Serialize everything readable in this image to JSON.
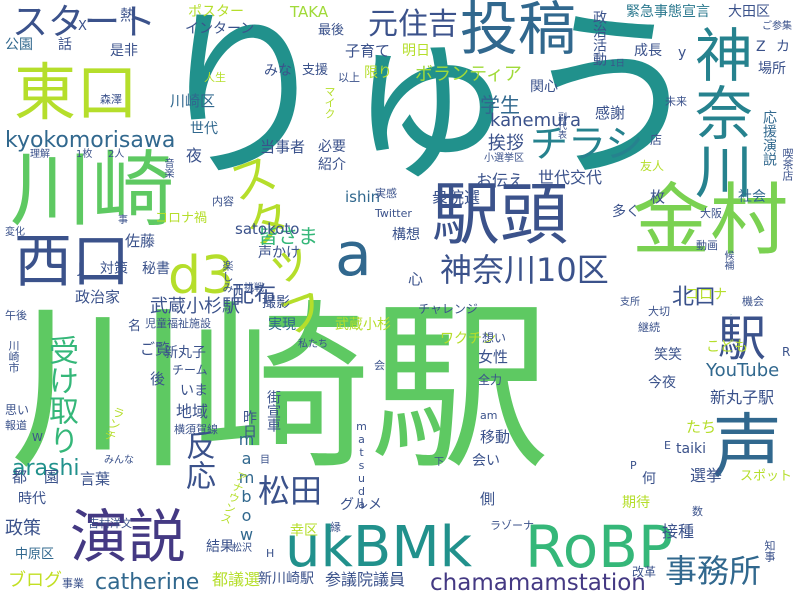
{
  "words": [
    {
      "text": "川崎駅",
      "color": "#5ec962"
    },
    {
      "text": "りゅう",
      "color": "#21918c"
    },
    {
      "text": "金村",
      "color": "#7ad151"
    },
    {
      "text": "駅頭",
      "color": "#3b528b"
    },
    {
      "text": "川崎",
      "color": "#5ec962"
    },
    {
      "text": "東口",
      "color": "#b5de2b"
    },
    {
      "text": "西口",
      "color": "#3b528b"
    },
    {
      "text": "演説",
      "color": "#443983"
    },
    {
      "text": "投稿",
      "color": "#31688e"
    },
    {
      "text": "ukBMk",
      "color": "#21918c"
    },
    {
      "text": "RoBP",
      "color": "#35b779"
    },
    {
      "text": "神奈川",
      "color": "#26828e"
    },
    {
      "text": "スタッフ",
      "color": "#b5de2b"
    },
    {
      "text": "d3",
      "color": "#b5de2b"
    },
    {
      "text": "a",
      "color": "#31688e"
    },
    {
      "text": "声",
      "color": "#31688e"
    },
    {
      "text": "駅",
      "color": "#3b528b"
    },
    {
      "text": "神奈川10区",
      "color": "#3b528b"
    },
    {
      "text": "チラシ",
      "color": "#26828e"
    },
    {
      "text": "事務所",
      "color": "#31688e"
    },
    {
      "text": "松田",
      "color": "#3b528b"
    },
    {
      "text": "chamamamstation",
      "color": "#443983"
    },
    {
      "text": "スタート",
      "color": "#3b528b"
    },
    {
      "text": "元住吉",
      "color": "#3b528b"
    },
    {
      "text": "kyokomorisawa",
      "color": "#31688e"
    },
    {
      "text": "ビラ",
      "color": "#26828e"
    },
    {
      "text": "受け取り",
      "color": "#35b779"
    },
    {
      "text": "反応",
      "color": "#3b528b"
    },
    {
      "text": "YouTube",
      "color": "#31688e"
    },
    {
      "text": "arashi",
      "color": "#21918c"
    },
    {
      "text": "catherine",
      "color": "#31688e"
    },
    {
      "text": "kanemura",
      "color": "#3b528b"
    },
    {
      "text": "ボランティア",
      "color": "#a0da39"
    },
    {
      "text": "学生",
      "color": "#31688e"
    },
    {
      "text": "北口",
      "color": "#3b528b"
    },
    {
      "text": "皆さま",
      "color": "#35b779"
    },
    {
      "text": "配布",
      "color": "#3b528b"
    },
    {
      "text": "武蔵小杉駅",
      "color": "#3b528b"
    },
    {
      "text": "ブログ",
      "color": "#c2df23"
    },
    {
      "text": "政策",
      "color": "#3b528b"
    },
    {
      "text": "挨拶",
      "color": "#3b528b"
    },
    {
      "text": "世代交代",
      "color": "#3b528b"
    },
    {
      "text": "衆院選",
      "color": "#3b528b"
    },
    {
      "text": "お伝え",
      "color": "#3b528b"
    },
    {
      "text": "緊急事態宣言",
      "color": "#2a788e"
    },
    {
      "text": "大田区",
      "color": "#3b528b"
    },
    {
      "text": "コロナ対策",
      "color": "#b5de2b"
    },
    {
      "text": "新丸子駅",
      "color": "#3b528b"
    },
    {
      "text": "地域",
      "color": "#3b528b"
    },
    {
      "text": "選挙",
      "color": "#3b528b"
    },
    {
      "text": "接種",
      "color": "#3b528b"
    },
    {
      "text": "参議院議員",
      "color": "#3b528b"
    },
    {
      "text": "都議選",
      "color": "#b5de2b"
    },
    {
      "text": "新川崎駅",
      "color": "#3b528b"
    },
    {
      "text": "mambow",
      "color": "#31688e"
    },
    {
      "text": "satokoto",
      "color": "#3b528b"
    },
    {
      "text": "ishin",
      "color": "#31688e"
    },
    {
      "text": "taiki",
      "color": "#3b528b"
    },
    {
      "text": "TAKA",
      "color": "#a0da39"
    },
    {
      "text": "ポスター",
      "color": "#b5de2b"
    },
    {
      "text": "インターン",
      "color": "#3b528b"
    },
    {
      "text": "成長",
      "color": "#3b528b"
    },
    {
      "text": "子育て",
      "color": "#3b528b"
    },
    {
      "text": "明日",
      "color": "#b5de2b"
    },
    {
      "text": "構想",
      "color": "#3b528b"
    },
    {
      "text": "多く",
      "color": "#3b528b"
    },
    {
      "text": "社会",
      "color": "#31688e"
    },
    {
      "text": "移動",
      "color": "#3b528b"
    },
    {
      "text": "ワクチン",
      "color": "#b5de2b"
    },
    {
      "text": "実現",
      "color": "#31688e"
    },
    {
      "text": "撮影",
      "color": "#3b528b"
    },
    {
      "text": "女性",
      "color": "#3b528b"
    },
    {
      "text": "笑笑",
      "color": "#3b528b"
    },
    {
      "text": "今夜",
      "color": "#3b528b"
    },
    {
      "text": "中原区",
      "color": "#31688e"
    },
    {
      "text": "政治家",
      "color": "#3b528b"
    },
    {
      "text": "時代",
      "color": "#3b528b"
    },
    {
      "text": "言葉",
      "color": "#3b528b"
    },
    {
      "text": "いま",
      "color": "#3b528b"
    },
    {
      "text": "佐藤",
      "color": "#3b528b"
    },
    {
      "text": "当事者",
      "color": "#3b528b"
    },
    {
      "text": "必要",
      "color": "#3b528b"
    },
    {
      "text": "紹介",
      "color": "#3b528b"
    },
    {
      "text": "支援",
      "color": "#3b528b"
    },
    {
      "text": "みな",
      "color": "#3b528b"
    },
    {
      "text": "夜",
      "color": "#3b528b"
    },
    {
      "text": "世代",
      "color": "#31688e"
    },
    {
      "text": "川崎区",
      "color": "#31688e"
    },
    {
      "text": "公園",
      "color": "#31688e"
    },
    {
      "text": "話",
      "color": "#3b528b"
    },
    {
      "text": "是非",
      "color": "#3b528b"
    },
    {
      "text": "熱",
      "color": "#3b528b"
    },
    {
      "text": "感謝",
      "color": "#3b528b"
    },
    {
      "text": "関心",
      "color": "#3b528b"
    },
    {
      "text": "場所",
      "color": "#3b528b"
    },
    {
      "text": "応援演説",
      "color": "#31688e"
    },
    {
      "text": "政治活動",
      "color": "#3b528b"
    },
    {
      "text": "限り",
      "color": "#b5de2b"
    },
    {
      "text": "最後",
      "color": "#3b528b"
    },
    {
      "text": "グルメ",
      "color": "#3b528b"
    },
    {
      "text": "結果",
      "color": "#3b528b"
    },
    {
      "text": "幸区",
      "color": "#b5de2b"
    },
    {
      "text": "側",
      "color": "#3b528b"
    },
    {
      "text": "期待",
      "color": "#b5de2b"
    },
    {
      "text": "会い",
      "color": "#3b528b"
    },
    {
      "text": "何",
      "color": "#3b528b"
    },
    {
      "text": "改革",
      "color": "#3b528b"
    },
    {
      "text": "コロナ",
      "color": "#b5de2b"
    },
    {
      "text": "声かけ",
      "color": "#3b528b"
    },
    {
      "text": "心",
      "color": "#3b528b"
    },
    {
      "text": "枚",
      "color": "#3b528b"
    },
    {
      "text": "ご覧",
      "color": "#3b528b"
    },
    {
      "text": "後",
      "color": "#3b528b"
    },
    {
      "text": "たち",
      "color": "#b5de2b"
    },
    {
      "text": "こども",
      "color": "#b5de2b"
    },
    {
      "text": "都",
      "color": "#3b528b"
    },
    {
      "text": "園",
      "color": "#3b528b"
    },
    {
      "text": "対策",
      "color": "#3b528b"
    },
    {
      "text": "秘書",
      "color": "#3b528b"
    },
    {
      "text": "昨日",
      "color": "#3b528b"
    },
    {
      "text": "武蔵小杉",
      "color": "#b5de2b"
    },
    {
      "text": "街宣車",
      "color": "#3b528b"
    },
    {
      "text": "チーム",
      "color": "#3b528b"
    },
    {
      "text": "新丸子",
      "color": "#3b528b"
    },
    {
      "text": "Twitter",
      "color": "#3b528b"
    },
    {
      "text": "大阪",
      "color": "#3b528b"
    },
    {
      "text": "店",
      "color": "#3b528b"
    },
    {
      "text": "友人",
      "color": "#b5de2b"
    },
    {
      "text": "人生",
      "color": "#b5de2b"
    },
    {
      "text": "森澤",
      "color": "#3b528b"
    },
    {
      "text": "以上",
      "color": "#3b528b"
    },
    {
      "text": "未来",
      "color": "#3b528b"
    },
    {
      "text": "喫茶店",
      "color": "#3b528b"
    },
    {
      "text": "実感",
      "color": "#3b528b"
    },
    {
      "text": "内容",
      "color": "#3b528b"
    },
    {
      "text": "コロナ禍",
      "color": "#b5de2b"
    },
    {
      "text": "動画",
      "color": "#3b528b"
    },
    {
      "text": "チャレンジ",
      "color": "#3b528b"
    },
    {
      "text": "児童福祉施設",
      "color": "#3b528b"
    },
    {
      "text": "スポット",
      "color": "#b5de2b"
    },
    {
      "text": "ラゾーナ",
      "color": "#3b528b"
    },
    {
      "text": "全力",
      "color": "#3b528b"
    },
    {
      "text": "継続",
      "color": "#3b528b"
    },
    {
      "text": "大切",
      "color": "#3b528b"
    },
    {
      "text": "想い",
      "color": "#3b528b"
    },
    {
      "text": "思い",
      "color": "#3b528b"
    },
    {
      "text": "報道",
      "color": "#3b528b"
    },
    {
      "text": "川崎市",
      "color": "#3b528b"
    },
    {
      "text": "matsuda",
      "color": "#3b528b"
    },
    {
      "text": "吉村洋文",
      "color": "#3b528b"
    },
    {
      "text": "横須賀線",
      "color": "#3b528b"
    },
    {
      "text": "ランチ",
      "color": "#b5de2b"
    },
    {
      "text": "アナウンス",
      "color": "#b5de2b"
    },
    {
      "text": "事業",
      "color": "#3b528b"
    },
    {
      "text": "知事",
      "color": "#3b528b"
    },
    {
      "text": "機会",
      "color": "#3b528b"
    },
    {
      "text": "支所",
      "color": "#3b528b"
    },
    {
      "text": "y",
      "color": "#3b528b"
    },
    {
      "text": "Z",
      "color": "#3b528b"
    },
    {
      "text": "カ",
      "color": "#3b528b"
    },
    {
      "text": "X",
      "color": "#3b528b"
    },
    {
      "text": "J",
      "color": "#3b528b"
    },
    {
      "text": "名",
      "color": "#3b528b"
    },
    {
      "text": "R",
      "color": "#3b528b"
    },
    {
      "text": "E",
      "color": "#3b528b"
    },
    {
      "text": "P",
      "color": "#3b528b"
    },
    {
      "text": "am",
      "color": "#3b528b"
    },
    {
      "text": "みんな",
      "color": "#3b528b"
    },
    {
      "text": "変化",
      "color": "#3b528b"
    },
    {
      "text": "理解",
      "color": "#3b528b"
    },
    {
      "text": "1枚",
      "color": "#3b528b"
    },
    {
      "text": "2人",
      "color": "#3b528b"
    },
    {
      "text": "午後",
      "color": "#3b528b"
    },
    {
      "text": "候補",
      "color": "#3b528b"
    },
    {
      "text": "挑戦",
      "color": "#3b528b"
    },
    {
      "text": "私たち",
      "color": "#3b528b"
    },
    {
      "text": "数",
      "color": "#3b528b"
    },
    {
      "text": "下",
      "color": "#3b528b"
    },
    {
      "text": "縁",
      "color": "#3b528b"
    },
    {
      "text": "目",
      "color": "#3b528b"
    },
    {
      "text": "会",
      "color": "#3b528b"
    },
    {
      "text": "H",
      "color": "#3b528b"
    },
    {
      "text": "松沢",
      "color": "#3b528b"
    },
    {
      "text": "ご参集",
      "color": "#3b528b"
    },
    {
      "text": "小選挙区",
      "color": "#3b528b"
    },
    {
      "text": "副代表",
      "color": "#3b528b"
    },
    {
      "text": "1日",
      "color": "#3b528b"
    },
    {
      "text": "楽しみ",
      "color": "#3b528b"
    },
    {
      "text": "マイク",
      "color": "#b5de2b"
    },
    {
      "text": "音楽",
      "color": "#3b528b"
    },
    {
      "text": "事",
      "color": "#3b528b"
    },
    {
      "text": "お",
      "color": "#3b528b"
    },
    {
      "text": "W",
      "color": "#3b528b"
    }
  ]
}
